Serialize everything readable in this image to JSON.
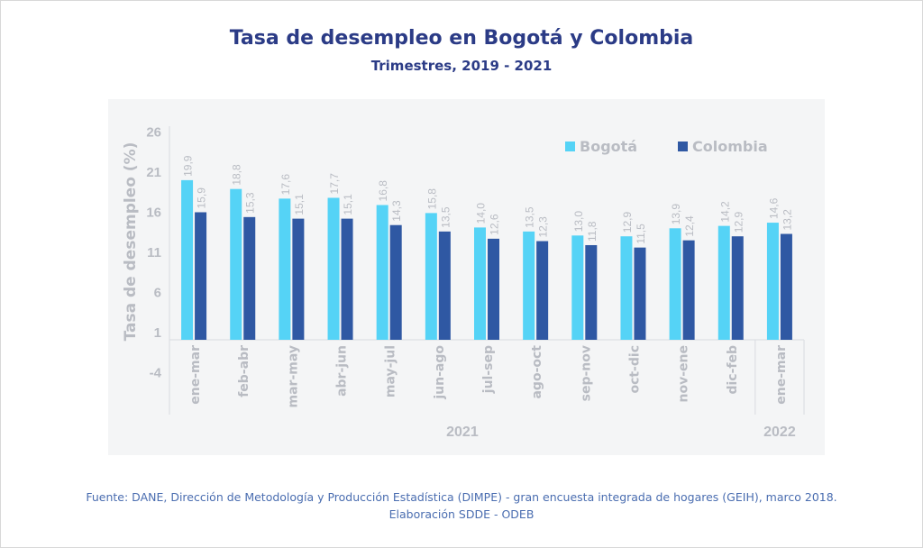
{
  "title": "Tasa de desempleo en Bogotá y Colombia",
  "subtitle": "Trimestres, 2019 - 2021",
  "footer": {
    "line1": "Fuente: DANE, Dirección de Metodología y Producción Estadística (DIMPE) - gran encuesta integrada de hogares (GEIH), marco 2018.",
    "line2": "Elaboración SDDE - ODEB"
  },
  "chart_data": {
    "type": "bar",
    "ylabel": "Tasa de desempleo (%)",
    "ylim": [
      -4,
      26
    ],
    "yticks": [
      "26",
      "21",
      "16",
      "11",
      "6",
      "1",
      "-4"
    ],
    "categories": [
      "ene-mar",
      "feb-abr",
      "mar-may",
      "abr-jun",
      "may-jul",
      "jun-ago",
      "jul-sep",
      "ago-oct",
      "sep-nov",
      "oct-dic",
      "nov-ene",
      "dic-feb",
      "ene-mar"
    ],
    "groups": [
      {
        "label": "2021",
        "count": 12
      },
      {
        "label": "2022",
        "count": 1
      }
    ],
    "legend_position": "top-right",
    "grid": false,
    "series": [
      {
        "name": "Bogotá",
        "color": "#55d3f6",
        "values": [
          19.9,
          18.8,
          17.6,
          17.7,
          16.8,
          15.8,
          14.0,
          13.5,
          13.0,
          12.9,
          13.9,
          14.2,
          14.6
        ],
        "labels": [
          "19,9",
          "18,8",
          "17,6",
          "17,7",
          "16,8",
          "15,8",
          "14,0",
          "13,5",
          "13,0",
          "12,9",
          "13,9",
          "14,2",
          "14,6"
        ]
      },
      {
        "name": "Colombia",
        "color": "#2f58a3",
        "values": [
          15.9,
          15.3,
          15.1,
          15.1,
          14.3,
          13.5,
          12.6,
          12.3,
          11.8,
          11.5,
          12.4,
          12.9,
          13.2
        ],
        "labels": [
          "15,9",
          "15,3",
          "15,1",
          "15,1",
          "14,3",
          "13,5",
          "12,6",
          "12,3",
          "11,8",
          "11,5",
          "12,4",
          "12,9",
          "13,2"
        ]
      }
    ]
  }
}
